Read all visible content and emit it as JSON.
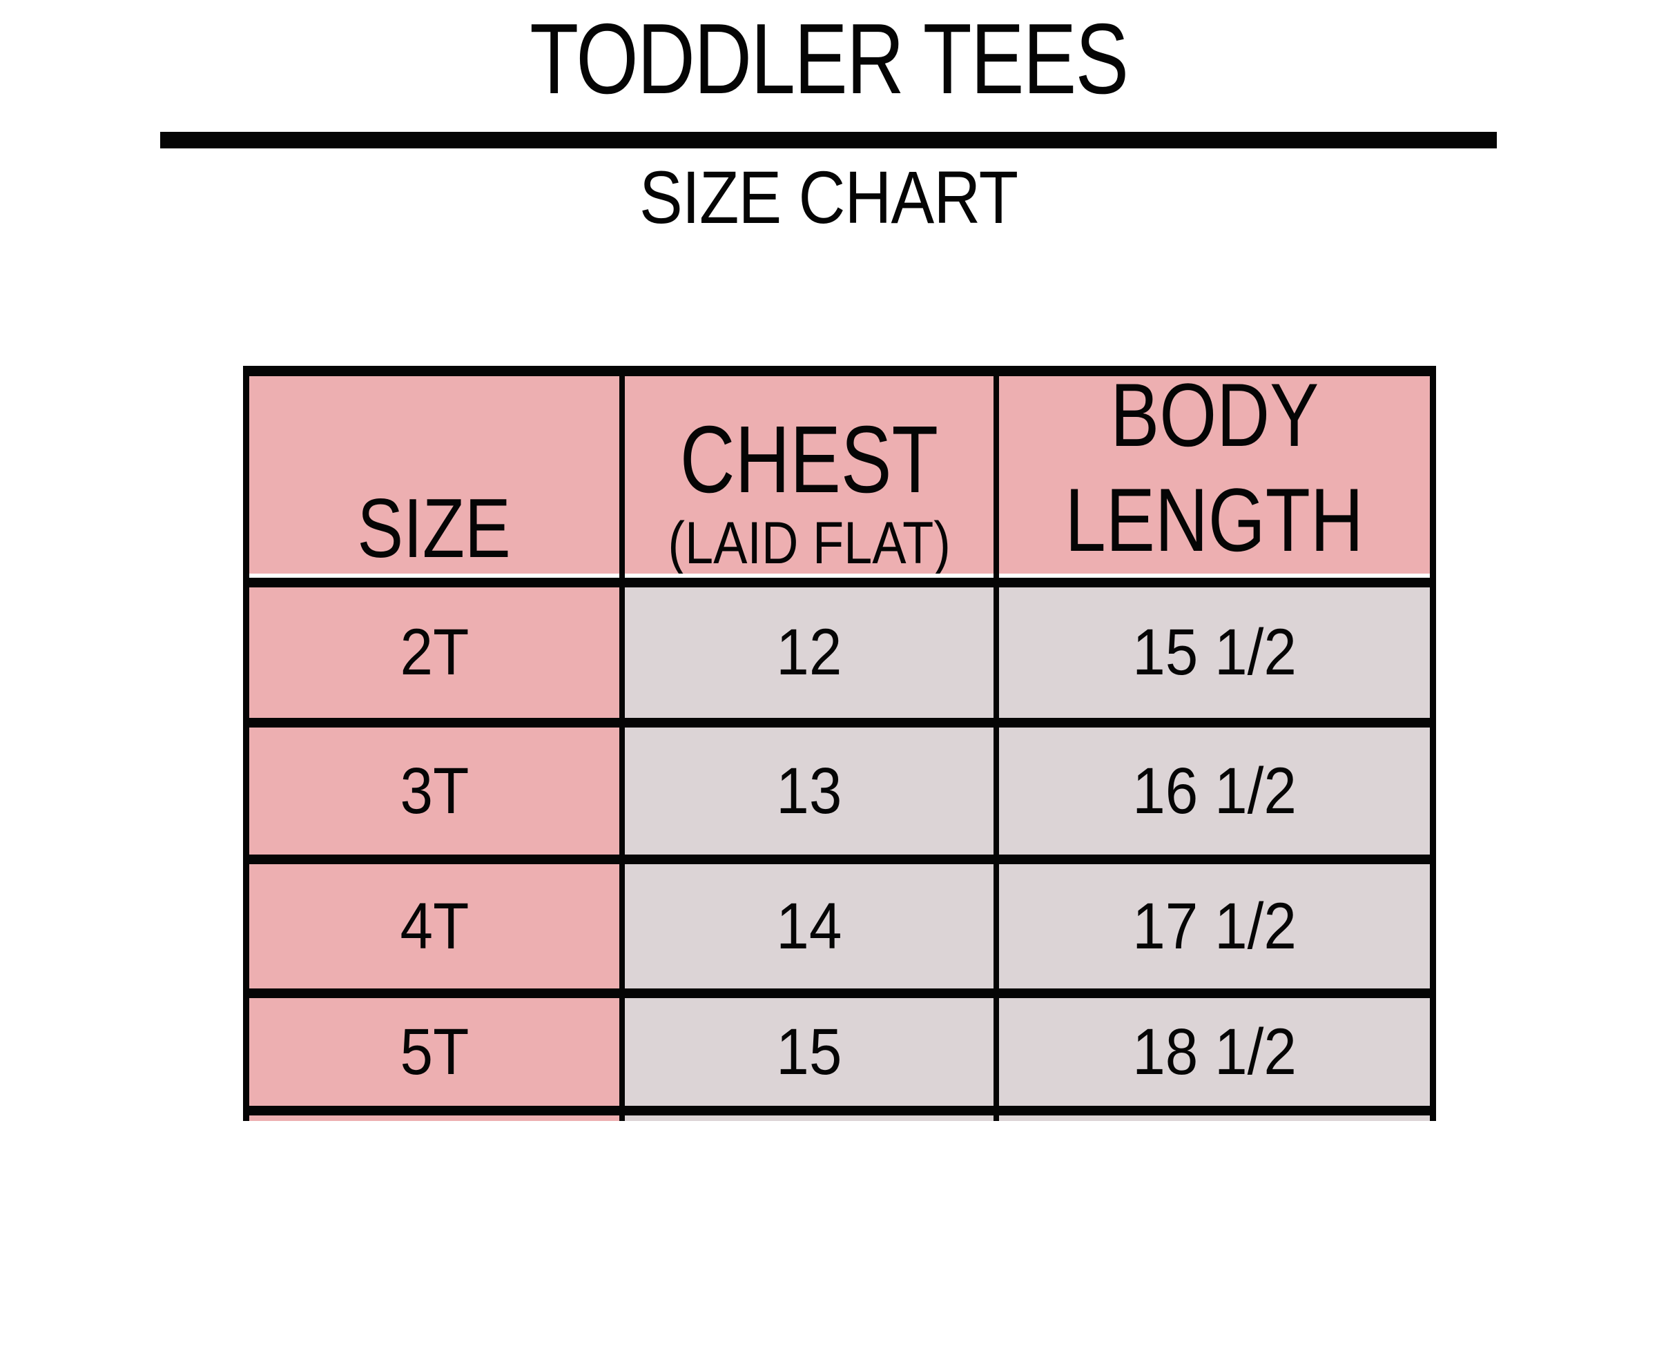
{
  "title": "TODDLER TEES",
  "subtitle": "SIZE CHART",
  "colors": {
    "pink": "#edafb1",
    "gray": "#dcd4d6",
    "black": "#050505",
    "white": "#ffffff"
  },
  "table": {
    "header": {
      "size_label": "SIZE",
      "chest_label": "CHEST",
      "chest_sublabel": "(LAID FLAT)",
      "body_label_line1": "BODY",
      "body_label_line2": "LENGTH"
    },
    "rows": [
      {
        "size": "2T",
        "chest": "12",
        "body_length": "15 1/2"
      },
      {
        "size": "3T",
        "chest": "13",
        "body_length": "16 1/2"
      },
      {
        "size": "4T",
        "chest": "14",
        "body_length": "17 1/2"
      },
      {
        "size": "5T",
        "chest": "15",
        "body_length": "18 1/2"
      }
    ]
  },
  "chart_data": {
    "type": "table",
    "title": "TODDLER TEES",
    "subtitle": "SIZE CHART",
    "columns": [
      "SIZE",
      "CHEST (LAID FLAT)",
      "BODY LENGTH"
    ],
    "rows": [
      [
        "2T",
        "12",
        "15 1/2"
      ],
      [
        "3T",
        "13",
        "16 1/2"
      ],
      [
        "4T",
        "14",
        "17 1/2"
      ],
      [
        "5T",
        "15",
        "18 1/2"
      ]
    ]
  }
}
